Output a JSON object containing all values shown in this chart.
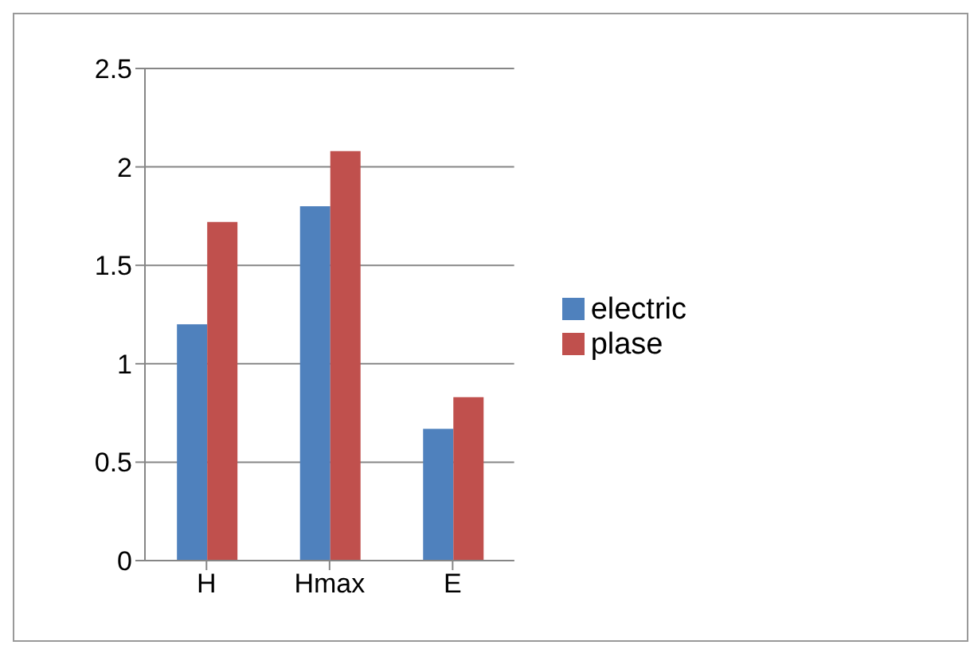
{
  "chart_data": {
    "type": "bar",
    "categories": [
      "H",
      "Hmax",
      "E"
    ],
    "series": [
      {
        "name": "electric",
        "color": "#4f81bd",
        "values": [
          1.2,
          1.8,
          0.67
        ]
      },
      {
        "name": "plase",
        "color": "#c0504d",
        "values": [
          1.72,
          2.08,
          0.83
        ]
      }
    ],
    "ylim": [
      0,
      2.5
    ],
    "yticks": [
      0,
      0.5,
      1,
      1.5,
      2,
      2.5
    ],
    "grid": "y",
    "legend": "right"
  }
}
